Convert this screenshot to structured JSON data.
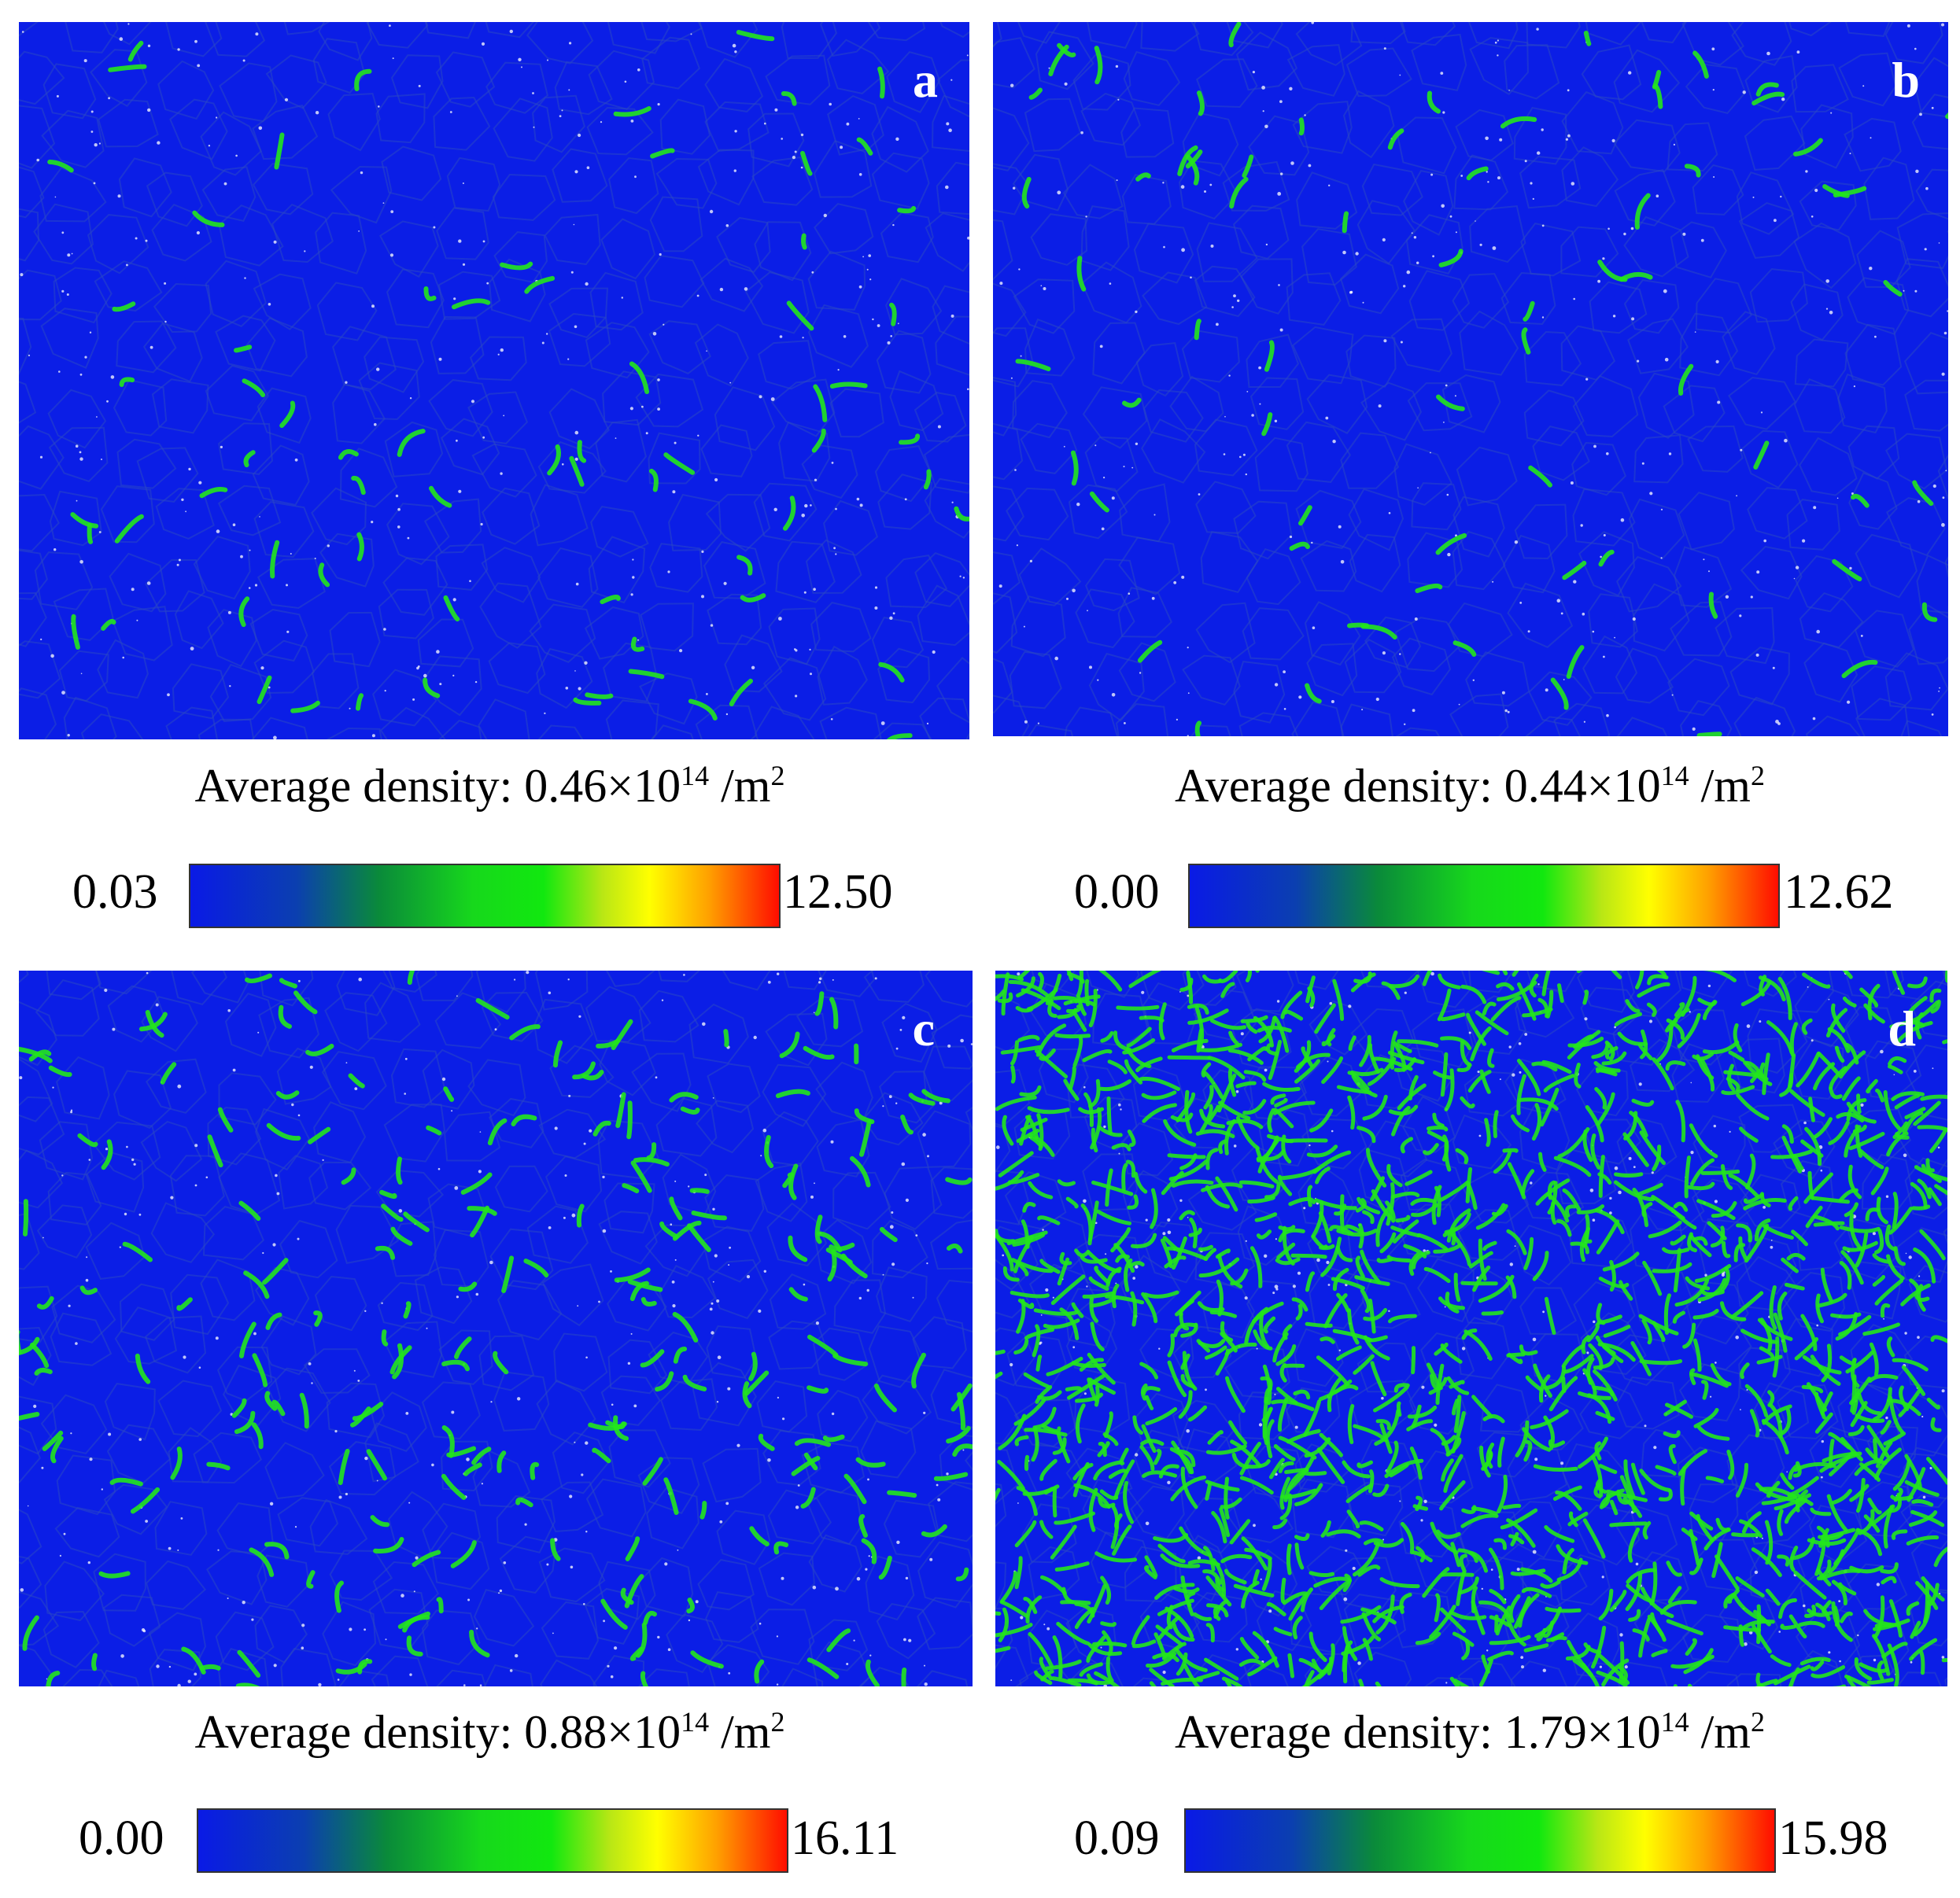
{
  "panels": [
    {
      "letter": "a",
      "caption_prefix": "Average density: 0.46×10",
      "caption_exp": "14",
      "caption_unit": " /m",
      "caption_unit_exp": "2",
      "colorbar_min": "0.03",
      "colorbar_max": "12.50",
      "density_level": "low"
    },
    {
      "letter": "b",
      "caption_prefix": "Average density: 0.44×10",
      "caption_exp": "14",
      "caption_unit": " /m",
      "caption_unit_exp": "2",
      "colorbar_min": "0.00",
      "colorbar_max": "12.62",
      "density_level": "low"
    },
    {
      "letter": "c",
      "caption_prefix": "Average density: 0.88×10",
      "caption_exp": "14",
      "caption_unit": " /m",
      "caption_unit_exp": "2",
      "colorbar_min": "0.00",
      "colorbar_max": "16.11",
      "density_level": "medium"
    },
    {
      "letter": "d",
      "caption_prefix": "Average density: 1.79×10",
      "caption_exp": "14",
      "caption_unit": " /m",
      "caption_unit_exp": "2",
      "colorbar_min": "0.09",
      "colorbar_max": "15.98",
      "density_level": "high"
    }
  ],
  "colors": {
    "background": "#0b1ee6",
    "feature": "#22e61c",
    "speck": "#ffffff"
  }
}
